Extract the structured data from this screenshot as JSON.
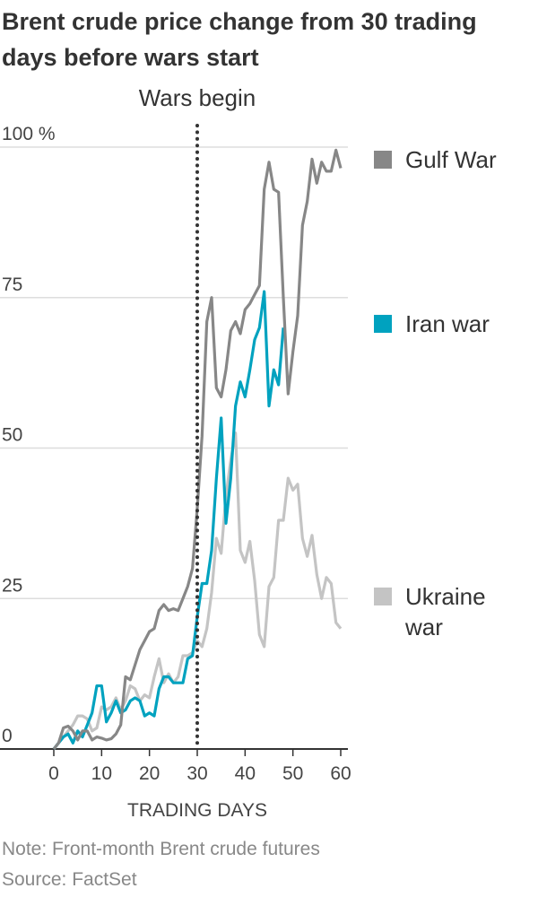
{
  "chart_data": {
    "type": "line",
    "title": "Brent crude price change from 30 trading days before wars start",
    "xlabel": "TRADING DAYS",
    "ylabel": "",
    "xlim": [
      0,
      60
    ],
    "ylim": [
      0,
      100
    ],
    "xticks": [
      0,
      10,
      20,
      30,
      40,
      50,
      60
    ],
    "yticks": [
      0,
      25,
      50,
      75,
      100
    ],
    "ytick_labels": [
      "0",
      "25",
      "50",
      "75",
      "100 %"
    ],
    "annotation": {
      "label": "Wars begin",
      "x": 30
    },
    "legend_placement": "right",
    "series": [
      {
        "name": "Gulf War",
        "color": "#878787",
        "values": [
          0,
          1,
          3.5,
          3.8,
          3,
          1.5,
          3,
          3,
          1.5,
          2,
          1.8,
          1.5,
          1.7,
          2.5,
          4,
          12,
          11.5,
          14,
          16.5,
          18,
          19.5,
          20,
          23,
          24,
          23,
          23.3,
          23,
          25,
          27,
          30,
          40,
          52,
          71,
          75,
          60,
          58.5,
          63,
          69.5,
          71,
          69,
          73,
          74,
          75.5,
          77,
          93,
          97.5,
          93,
          92.5,
          75,
          59,
          66,
          72,
          87,
          91,
          98,
          94,
          97.5,
          96,
          96,
          99.5,
          96.5
        ]
      },
      {
        "name": "Iran war",
        "color": "#00a2bf",
        "values": [
          0,
          1,
          2,
          2.5,
          1,
          3,
          2,
          4,
          6,
          10.5,
          10.5,
          4.5,
          6,
          8,
          6,
          6.5,
          8,
          8.5,
          8,
          5.5,
          6,
          5.5,
          10,
          12,
          12,
          11,
          11,
          11,
          15,
          15.5,
          22,
          27.5,
          27.5,
          33,
          45,
          55,
          37.5,
          45,
          57,
          61,
          58.5,
          63,
          68,
          70,
          76,
          57,
          63,
          60.5,
          70
        ]
      },
      {
        "name": "Ukraine war",
        "color": "#c4c4c4",
        "values": [
          0,
          1,
          2,
          3,
          4,
          5.5,
          5.5,
          5,
          3,
          3.5,
          7,
          6.5,
          7,
          8.5,
          6.5,
          8,
          10.5,
          10,
          8,
          9,
          8.5,
          12,
          15,
          11,
          12.5,
          11,
          12,
          15.5,
          15.5,
          16,
          18,
          17,
          20,
          26,
          35,
          32.5,
          42,
          48,
          52.5,
          33,
          31,
          34.5,
          28,
          19,
          17,
          27,
          28.5,
          38,
          38,
          45,
          43,
          44,
          35,
          32,
          35.5,
          29,
          25,
          28.5,
          27.5,
          21,
          20
        ]
      }
    ]
  },
  "legend_labels": {
    "gulf": "Gulf War",
    "iran": "Iran war",
    "ukraine_1": "Ukraine",
    "ukraine_2": "war"
  },
  "notes": {
    "note": "Note: Front-month Brent crude futures",
    "source": "Source: FactSet"
  }
}
